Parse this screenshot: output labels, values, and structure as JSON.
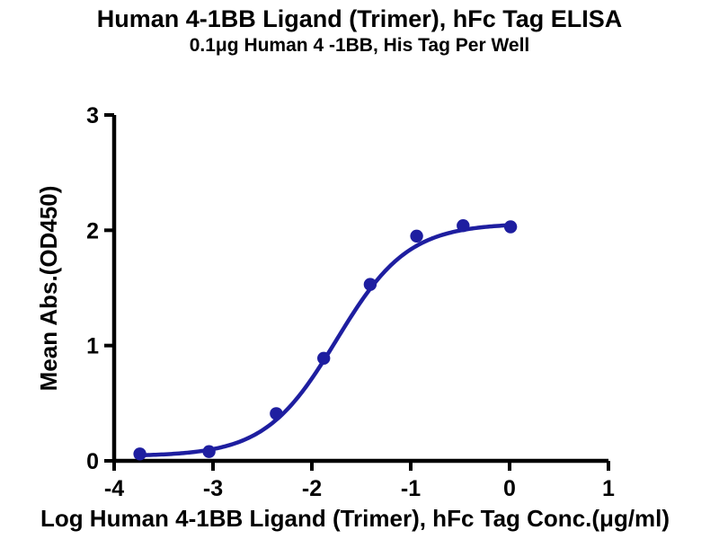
{
  "header": {
    "title": "Human 4-1BB Ligand (Trimer), hFc Tag ELISA",
    "subtitle": "0.1μg Human 4 -1BB, His Tag Per Well"
  },
  "chart_data": {
    "type": "scatter",
    "title": "Human 4-1BB Ligand (Trimer), hFc Tag ELISA",
    "subtitle": "0.1μg Human 4 -1BB, His Tag Per Well",
    "xlabel": "Log Human 4-1BB Ligand (Trimer), hFc Tag Conc.(μg/ml)",
    "ylabel": "Mean Abs.(OD450)",
    "xlim": [
      -4,
      1
    ],
    "ylim": [
      0,
      3
    ],
    "x_ticks": [
      -4,
      -3,
      -2,
      -1,
      0,
      1
    ],
    "y_ticks": [
      0,
      1,
      2,
      3
    ],
    "grid": false,
    "legend_position": "none",
    "axis_color": "#000000",
    "series": [
      {
        "name": "series-1",
        "color": "#1e1ea0",
        "marker": "circle",
        "points": [
          {
            "x": -3.74,
            "y": 0.06
          },
          {
            "x": -3.04,
            "y": 0.08
          },
          {
            "x": -2.36,
            "y": 0.41
          },
          {
            "x": -1.88,
            "y": 0.89
          },
          {
            "x": -1.41,
            "y": 1.53
          },
          {
            "x": -0.94,
            "y": 1.95
          },
          {
            "x": -0.47,
            "y": 2.04
          },
          {
            "x": 0.01,
            "y": 2.03
          }
        ],
        "fit_curve": {
          "type": "4PL",
          "bottom": 0.04,
          "top": 2.06,
          "logEC50": -1.75,
          "hill": 1.2,
          "x_start": -3.74,
          "x_end": 0.01
        }
      }
    ]
  }
}
